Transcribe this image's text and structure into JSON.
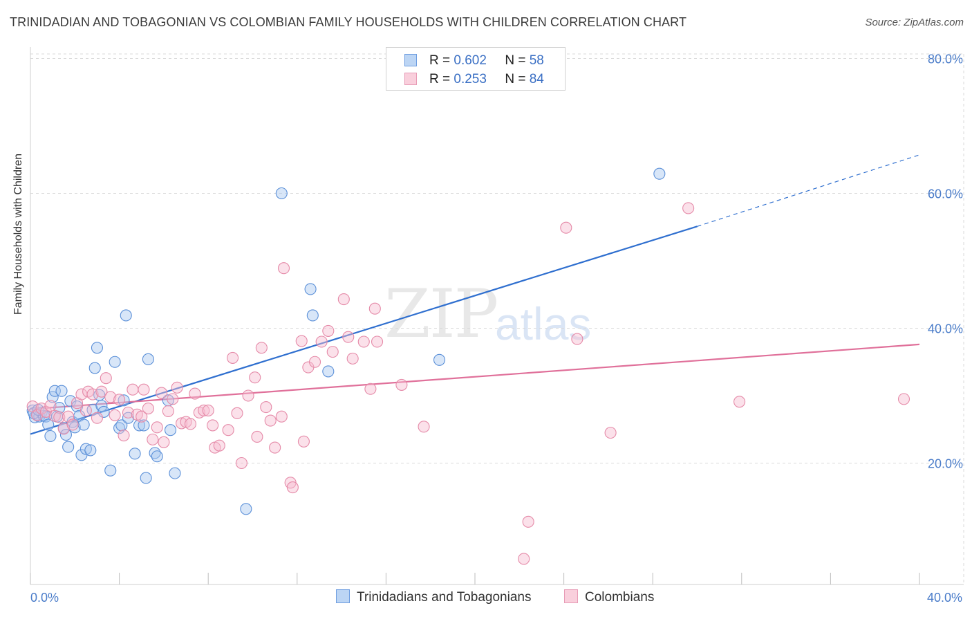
{
  "title": "TRINIDADIAN AND TOBAGONIAN VS COLOMBIAN FAMILY HOUSEHOLDS WITH CHILDREN CORRELATION CHART",
  "source": "Source: ZipAtlas.com",
  "watermark": {
    "zip": "ZIP",
    "atlas": "atlas"
  },
  "legend": {
    "rows": [
      {
        "r_label": "R =",
        "r_value": "0.602",
        "n_label": "N =",
        "n_value": "58"
      },
      {
        "r_label": "R =",
        "r_value": "0.253",
        "n_label": "N =",
        "n_value": "84"
      }
    ]
  },
  "bottom_legend": {
    "series1": "Trinidadians and Tobagonians",
    "series2": "Colombians"
  },
  "colors": {
    "blue_fill": "#a8c8f0",
    "blue_stroke": "#5a8fd8",
    "blue_line": "#2f6fcf",
    "pink_fill": "#f7bcd0",
    "pink_stroke": "#e58aa8",
    "pink_line": "#e0709a",
    "axis_label": "#4a7cc9",
    "grid": "#d8d8d8"
  },
  "chart_data": {
    "type": "scatter",
    "title": "TRINIDADIAN AND TOBAGONIAN VS COLOMBIAN FAMILY HOUSEHOLDS WITH CHILDREN CORRELATION CHART",
    "xlabel": "",
    "ylabel": "Family Households with Children",
    "xlim": [
      0,
      40
    ],
    "ylim": [
      2,
      82
    ],
    "x_tick_labels": [
      {
        "x": 0,
        "label": "0.0%"
      },
      {
        "x": 40,
        "label": "40.0%"
      }
    ],
    "y_tick_labels": [
      {
        "y": 20,
        "label": "20.0%"
      },
      {
        "y": 40,
        "label": "40.0%"
      },
      {
        "y": 60,
        "label": "60.0%"
      },
      {
        "y": 80,
        "label": "80.0%"
      }
    ],
    "grid": true,
    "legend_position": "top-center",
    "series": [
      {
        "name": "Trinidadians and Tobagonians",
        "color": "#5a8fd8",
        "trend": {
          "x": [
            0,
            30
          ],
          "y": [
            24.3,
            55.1
          ],
          "dashed_extension": {
            "x": [
              30,
              40
            ],
            "y": [
              55.1,
              65.7
            ]
          }
        },
        "points": [
          [
            0.1,
            27.8
          ],
          [
            0.2,
            26.8
          ],
          [
            0.3,
            27.2
          ],
          [
            0.4,
            26.9
          ],
          [
            0.5,
            27.5
          ],
          [
            0.6,
            27.0
          ],
          [
            0.7,
            26.9
          ],
          [
            0.8,
            25.7
          ],
          [
            0.9,
            24.0
          ],
          [
            1.0,
            29.8
          ],
          [
            1.1,
            30.7
          ],
          [
            1.2,
            26.9
          ],
          [
            1.3,
            28.2
          ],
          [
            1.4,
            30.7
          ],
          [
            1.5,
            25.2
          ],
          [
            1.6,
            24.2
          ],
          [
            1.7,
            22.4
          ],
          [
            1.8,
            29.2
          ],
          [
            1.9,
            26.1
          ],
          [
            2.0,
            25.3
          ],
          [
            2.1,
            28.4
          ],
          [
            2.2,
            27.0
          ],
          [
            2.3,
            21.2
          ],
          [
            2.4,
            25.7
          ],
          [
            2.5,
            22.1
          ],
          [
            2.7,
            21.9
          ],
          [
            2.8,
            27.9
          ],
          [
            2.9,
            34.1
          ],
          [
            3.0,
            37.1
          ],
          [
            3.1,
            30.1
          ],
          [
            3.2,
            28.5
          ],
          [
            3.3,
            27.6
          ],
          [
            3.6,
            18.9
          ],
          [
            3.8,
            35.0
          ],
          [
            4.0,
            25.2
          ],
          [
            4.1,
            25.6
          ],
          [
            4.2,
            29.3
          ],
          [
            4.3,
            41.9
          ],
          [
            4.4,
            26.7
          ],
          [
            4.7,
            21.4
          ],
          [
            4.9,
            25.6
          ],
          [
            5.1,
            25.6
          ],
          [
            5.2,
            17.8
          ],
          [
            5.3,
            35.4
          ],
          [
            5.6,
            21.5
          ],
          [
            5.7,
            21.0
          ],
          [
            6.2,
            29.3
          ],
          [
            6.3,
            24.9
          ],
          [
            6.5,
            18.5
          ],
          [
            9.7,
            13.2
          ],
          [
            11.3,
            60.0
          ],
          [
            12.6,
            45.8
          ],
          [
            12.7,
            41.9
          ],
          [
            13.4,
            33.6
          ],
          [
            18.4,
            35.3
          ],
          [
            28.3,
            62.9
          ],
          [
            0.15,
            27.4
          ],
          [
            0.35,
            27.9
          ]
        ]
      },
      {
        "name": "Colombians",
        "color": "#e58aa8",
        "trend": {
          "x": [
            0,
            40
          ],
          "y": [
            28.0,
            37.6
          ]
        },
        "points": [
          [
            0.1,
            28.4
          ],
          [
            0.3,
            27.1
          ],
          [
            0.5,
            28.1
          ],
          [
            0.7,
            27.6
          ],
          [
            0.9,
            28.5
          ],
          [
            1.1,
            27.0
          ],
          [
            1.3,
            26.8
          ],
          [
            1.5,
            25.1
          ],
          [
            1.7,
            26.9
          ],
          [
            1.9,
            25.7
          ],
          [
            2.1,
            28.9
          ],
          [
            2.3,
            30.2
          ],
          [
            2.5,
            27.8
          ],
          [
            2.6,
            30.6
          ],
          [
            2.8,
            30.2
          ],
          [
            3.0,
            26.7
          ],
          [
            3.2,
            30.6
          ],
          [
            3.4,
            32.6
          ],
          [
            3.6,
            29.8
          ],
          [
            3.8,
            27.1
          ],
          [
            4.0,
            29.4
          ],
          [
            4.2,
            24.1
          ],
          [
            4.4,
            27.5
          ],
          [
            4.6,
            30.9
          ],
          [
            4.8,
            27.2
          ],
          [
            5.0,
            26.9
          ],
          [
            5.1,
            30.9
          ],
          [
            5.3,
            28.1
          ],
          [
            5.5,
            23.5
          ],
          [
            5.7,
            25.3
          ],
          [
            5.9,
            30.4
          ],
          [
            6.0,
            23.1
          ],
          [
            6.2,
            27.7
          ],
          [
            6.4,
            29.5
          ],
          [
            6.6,
            31.2
          ],
          [
            6.8,
            25.9
          ],
          [
            7.0,
            26.1
          ],
          [
            7.2,
            25.8
          ],
          [
            7.4,
            30.3
          ],
          [
            7.6,
            27.5
          ],
          [
            7.8,
            27.8
          ],
          [
            8.0,
            27.8
          ],
          [
            8.2,
            25.6
          ],
          [
            8.3,
            22.3
          ],
          [
            8.5,
            22.6
          ],
          [
            8.9,
            24.9
          ],
          [
            9.1,
            35.6
          ],
          [
            9.3,
            27.4
          ],
          [
            9.5,
            20.0
          ],
          [
            9.8,
            30.0
          ],
          [
            10.1,
            32.7
          ],
          [
            10.2,
            23.9
          ],
          [
            10.4,
            37.1
          ],
          [
            10.6,
            28.3
          ],
          [
            10.8,
            26.3
          ],
          [
            11.0,
            22.3
          ],
          [
            11.3,
            26.9
          ],
          [
            11.4,
            48.9
          ],
          [
            11.7,
            17.1
          ],
          [
            11.8,
            16.4
          ],
          [
            12.2,
            38.1
          ],
          [
            12.3,
            23.2
          ],
          [
            12.5,
            34.2
          ],
          [
            12.8,
            35.0
          ],
          [
            13.1,
            38.0
          ],
          [
            13.4,
            39.6
          ],
          [
            13.6,
            36.5
          ],
          [
            14.1,
            44.3
          ],
          [
            14.3,
            38.7
          ],
          [
            14.5,
            35.5
          ],
          [
            15.0,
            38.0
          ],
          [
            15.5,
            42.9
          ],
          [
            15.6,
            38.0
          ],
          [
            15.3,
            31.0
          ],
          [
            16.7,
            31.6
          ],
          [
            17.7,
            25.4
          ],
          [
            22.4,
            11.3
          ],
          [
            22.2,
            5.8
          ],
          [
            24.1,
            54.9
          ],
          [
            24.6,
            38.4
          ],
          [
            26.1,
            24.5
          ],
          [
            29.6,
            57.8
          ],
          [
            31.9,
            29.1
          ],
          [
            39.3,
            29.5
          ]
        ]
      }
    ]
  }
}
